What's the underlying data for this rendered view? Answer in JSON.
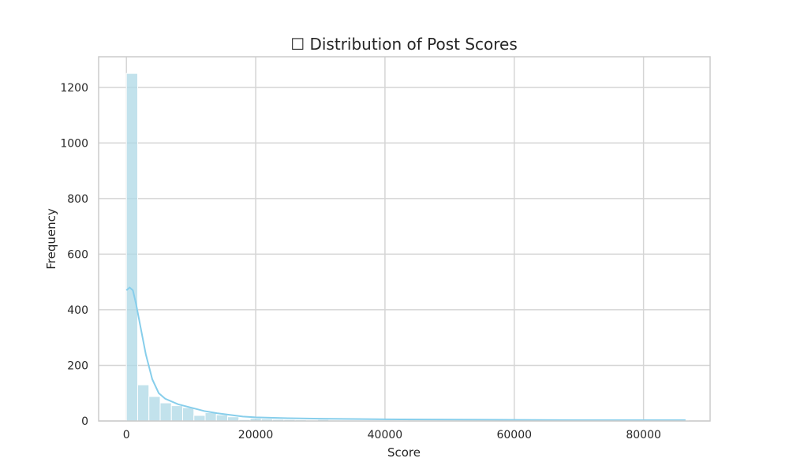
{
  "chart_data": {
    "type": "bar",
    "title": "☐ Distribution of Post Scores",
    "xlabel": "Score",
    "ylabel": "Frequency",
    "xlim": [
      -4300,
      90300
    ],
    "ylim": [
      0,
      1310
    ],
    "xticks": [
      0,
      20000,
      40000,
      60000,
      80000
    ],
    "yticks": [
      0,
      200,
      400,
      600,
      800,
      1000,
      1200
    ],
    "grid": true,
    "bar_color": "#add8e6",
    "kde_color": "#87ceeb",
    "bins": {
      "start": 0,
      "width": 1740,
      "counts": [
        1250,
        130,
        88,
        65,
        55,
        48,
        20,
        30,
        22,
        15,
        5,
        10,
        8,
        6,
        5,
        4,
        3,
        5,
        3,
        2,
        2,
        2,
        2,
        1,
        2,
        1,
        1,
        1,
        1,
        1,
        1,
        1,
        1,
        1,
        1,
        1,
        1,
        1,
        1,
        1,
        1,
        1,
        1,
        1,
        1,
        1,
        1,
        1,
        1,
        1
      ]
    },
    "kde": {
      "x": [
        0,
        500,
        1000,
        1500,
        2000,
        3000,
        4000,
        5000,
        6000,
        8000,
        10000,
        12000,
        14000,
        16000,
        18000,
        20000,
        25000,
        30000,
        35000,
        40000,
        50000,
        60000,
        70000,
        80000,
        86500
      ],
      "y": [
        470,
        480,
        470,
        420,
        360,
        240,
        150,
        100,
        80,
        60,
        48,
        36,
        28,
        22,
        16,
        13,
        10,
        8,
        7,
        6,
        5,
        4,
        3,
        3,
        3
      ]
    }
  }
}
